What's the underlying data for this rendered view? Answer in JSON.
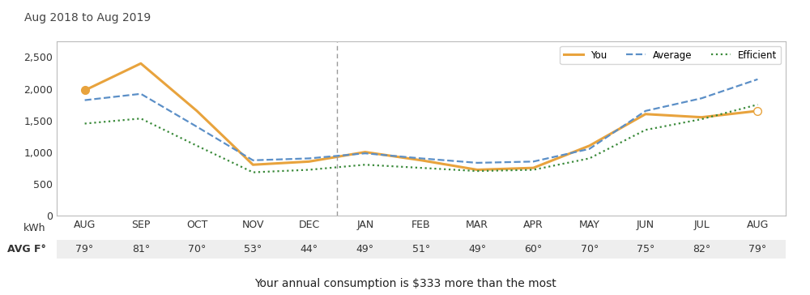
{
  "chart_data": {
    "type": "line",
    "title": "Aug 2018 to Aug 2019",
    "categories": [
      "AUG",
      "SEP",
      "OCT",
      "NOV",
      "DEC",
      "JAN",
      "FEB",
      "MAR",
      "APR",
      "MAY",
      "JUN",
      "JUL",
      "AUG"
    ],
    "series": [
      {
        "name": "You",
        "color": "#e8a33d",
        "line_style": "solid",
        "values": [
          1975,
          2400,
          1650,
          800,
          850,
          1000,
          870,
          720,
          750,
          1100,
          1600,
          1550,
          1650
        ]
      },
      {
        "name": "Average",
        "color": "#5b8fc7",
        "line_style": "dashed",
        "values": [
          1820,
          1920,
          1400,
          870,
          900,
          980,
          900,
          830,
          850,
          1050,
          1650,
          1850,
          2150
        ]
      },
      {
        "name": "Efficient",
        "color": "#3a8a3a",
        "line_style": "dotted",
        "values": [
          1450,
          1530,
          1100,
          680,
          720,
          800,
          750,
          700,
          720,
          900,
          1350,
          1520,
          1750
        ]
      }
    ],
    "y_label": "kWh",
    "temperature_label": "AVG F°",
    "temperatures": [
      "79°",
      "81°",
      "70°",
      "53°",
      "44°",
      "49°",
      "51°",
      "49°",
      "60°",
      "70°",
      "75°",
      "82°",
      "79°"
    ],
    "ylim": [
      0,
      2750
    ],
    "yticks": [
      0,
      500,
      {
        "value": 1000,
        "label": "1,000"
      },
      {
        "value": 1500,
        "label": "1,500"
      },
      {
        "value": 2000,
        "label": "2,000"
      },
      {
        "value": 2500,
        "label": "2,500"
      }
    ],
    "grid": false,
    "legend": "upper right",
    "footer": "Your annual consumption is $333 more than the most"
  }
}
